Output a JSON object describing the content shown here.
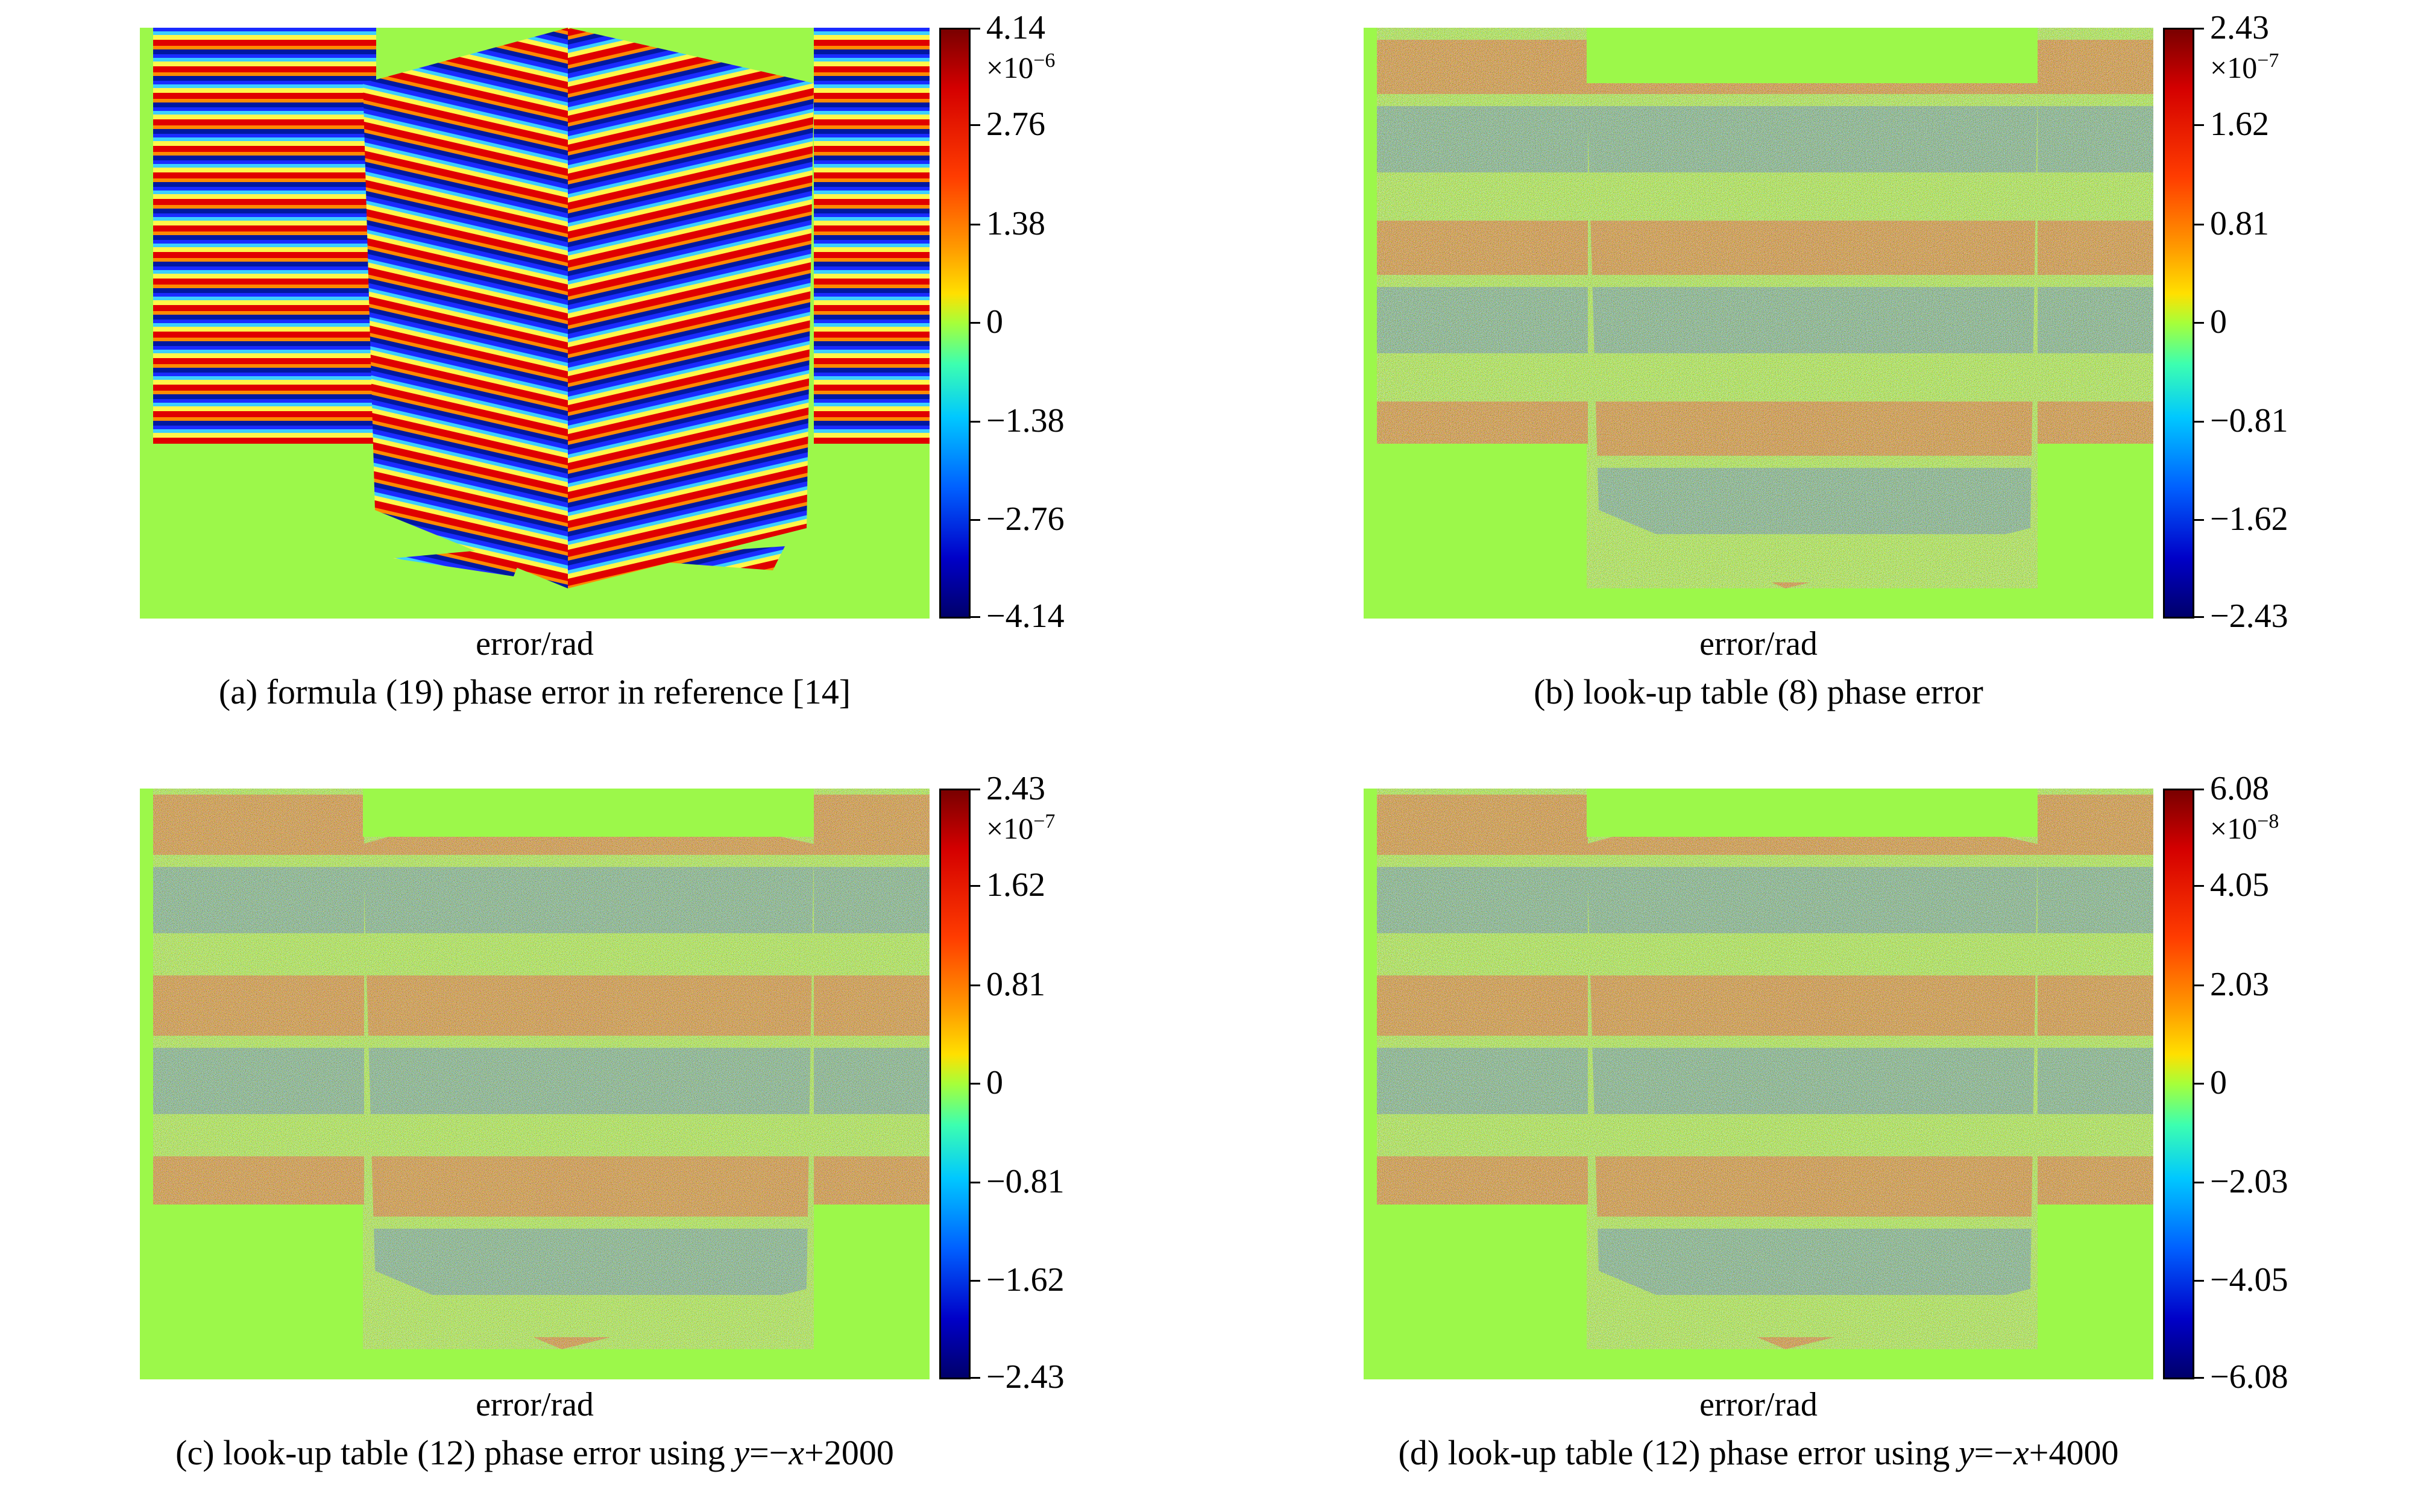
{
  "colors": {
    "background": "#9cf84a",
    "accent_red": "#d40000",
    "accent_blue": "#0000c8"
  },
  "panels": [
    {
      "caption": "(a) formula (19) phase error in reference [14]",
      "xlabel": "error/rad",
      "colorbar": {
        "ticks": [
          "4.14",
          "2.76",
          "1.38",
          "0",
          "−1.38",
          "−2.76",
          "−4.14"
        ],
        "multiplier": "×10",
        "exponent": "−6"
      },
      "pattern": "stripes"
    },
    {
      "caption": "(b) look-up table (8) phase error",
      "xlabel": "error/rad",
      "colorbar": {
        "ticks": [
          "2.43",
          "1.62",
          "0.81",
          "0",
          "−0.81",
          "−1.62",
          "−2.43"
        ],
        "multiplier": "×10",
        "exponent": "−7"
      },
      "pattern": "noise"
    },
    {
      "caption_pre": "(c) look-up table (12) phase error using ",
      "caption_y": "y",
      "caption_mid": "=−",
      "caption_x": "x",
      "caption_post": "+2000",
      "xlabel": "error/rad",
      "colorbar": {
        "ticks": [
          "2.43",
          "1.62",
          "0.81",
          "0",
          "−0.81",
          "−1.62",
          "−2.43"
        ],
        "multiplier": "×10",
        "exponent": "−7"
      },
      "pattern": "noise"
    },
    {
      "caption_pre": "(d) look-up table (12) phase error using ",
      "caption_y": "y",
      "caption_mid": "=−",
      "caption_x": "x",
      "caption_post": "+4000",
      "xlabel": "error/rad",
      "colorbar": {
        "ticks": [
          "6.08",
          "4.05",
          "2.03",
          "0",
          "−2.03",
          "−4.05",
          "−6.08"
        ],
        "multiplier": "×10",
        "exponent": "−8"
      },
      "pattern": "noise"
    }
  ]
}
